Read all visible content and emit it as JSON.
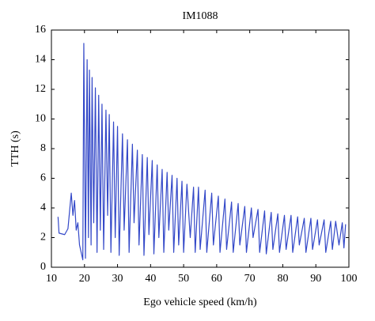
{
  "chart_data": {
    "type": "line",
    "title": "IM1088",
    "xlabel": "Ego vehicle speed (km/h)",
    "ylabel": "TTH (s)",
    "xlim": [
      10,
      100
    ],
    "ylim": [
      0,
      16
    ],
    "xticks": [
      10,
      20,
      30,
      40,
      50,
      60,
      70,
      80,
      90,
      100
    ],
    "yticks": [
      0,
      2,
      4,
      6,
      8,
      10,
      12,
      14,
      16
    ],
    "grid": false,
    "series": [
      {
        "name": "TTH",
        "color": "#3348c8",
        "x": [
          12,
          12.3,
          14,
          15,
          16,
          16.5,
          17,
          17.5,
          18,
          18.5,
          19,
          19.5,
          19.8,
          20.3,
          20.8,
          21.2,
          21.5,
          22,
          22.3,
          22.8,
          23.3,
          23.8,
          24.3,
          24.8,
          25.3,
          25.8,
          26.5,
          27,
          27.5,
          28,
          28.8,
          29.3,
          30,
          30.5,
          31.5,
          32,
          33,
          33.5,
          34.5,
          35,
          36,
          36.5,
          37.5,
          38,
          39,
          39.5,
          40.5,
          41,
          42,
          42.5,
          43.5,
          44,
          45,
          45.5,
          46.5,
          47,
          48,
          48.5,
          49.5,
          50,
          51,
          52,
          53,
          53.5,
          54.5,
          55,
          56.5,
          57,
          58.5,
          59,
          60.5,
          61,
          62.5,
          63,
          64.5,
          65,
          66.5,
          67,
          68.5,
          69,
          70.5,
          71,
          72.5,
          73,
          74.5,
          75,
          76.5,
          77,
          78.5,
          79,
          80.5,
          81,
          82.5,
          83,
          84.5,
          85,
          86.5,
          87,
          88.5,
          89,
          90.5,
          91,
          92.5,
          93,
          94.5,
          95,
          96,
          97,
          98,
          98.5,
          99
        ],
        "values": [
          3.4,
          2.3,
          2.2,
          2.6,
          5.0,
          3.5,
          4.5,
          2.5,
          3.0,
          1.5,
          1.0,
          0.5,
          15.1,
          0.6,
          14.0,
          2.0,
          13.3,
          1.5,
          12.8,
          3.0,
          12.1,
          1.0,
          11.6,
          2.5,
          11.0,
          1.2,
          10.6,
          3.5,
          10.3,
          1.0,
          9.8,
          2.0,
          9.5,
          0.8,
          9.0,
          2.5,
          8.6,
          1.0,
          8.3,
          3.0,
          7.9,
          1.5,
          7.6,
          0.8,
          7.4,
          2.2,
          7.2,
          0.9,
          6.9,
          2.0,
          6.6,
          1.0,
          6.4,
          2.5,
          6.2,
          1.0,
          6.0,
          1.5,
          5.8,
          1.0,
          5.6,
          2.0,
          5.4,
          1.0,
          5.4,
          1.2,
          5.2,
          1.0,
          5.0,
          1.5,
          4.8,
          1.0,
          4.6,
          1.2,
          4.4,
          1.0,
          4.3,
          1.5,
          4.1,
          1.0,
          4.0,
          2.0,
          3.9,
          1.0,
          3.8,
          0.9,
          3.7,
          1.2,
          3.6,
          1.0,
          3.5,
          1.2,
          3.5,
          1.0,
          3.4,
          1.5,
          3.3,
          1.0,
          3.3,
          1.2,
          3.2,
          1.5,
          3.2,
          1.0,
          3.1,
          1.2,
          3.1,
          1.5,
          3.0,
          1.3,
          2.9
        ]
      }
    ]
  }
}
